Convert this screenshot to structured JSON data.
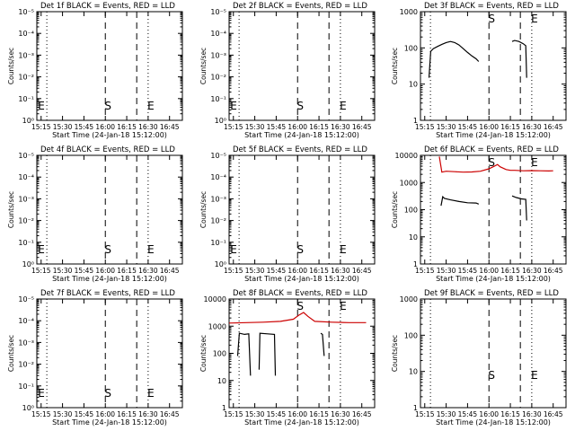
{
  "x_axis": {
    "tick_labels": [
      "15:15",
      "15:30",
      "15:45",
      "16:00",
      "16:15",
      "16:30",
      "16:45"
    ],
    "xlabel": "Start Time (24-Jan-18 15:12:00)",
    "range": [
      "15:12",
      "16:54"
    ]
  },
  "markers": [
    {
      "time": "16:00",
      "label": "S",
      "style": "dashed"
    },
    {
      "time": "16:30",
      "label": "E",
      "style": "dotted"
    }
  ],
  "dashed_lines": [
    "16:00",
    "16:22"
  ],
  "dotted_lines": [
    "15:19",
    "16:30"
  ],
  "style": {
    "events_color": "#000000",
    "lld_color": "#cc0000",
    "grid": false
  },
  "chart_data": [
    {
      "type": "line",
      "title": "Det 1f BLACK = Events, RED = LLD",
      "ylabel": "Counts/sec",
      "yscale": "log",
      "ytick_labels": [
        "10⁰",
        "10⁻¹",
        "10⁻²",
        "10⁻³",
        "10⁻⁴",
        "10⁻⁵"
      ],
      "ylim": [
        1,
        1e-05
      ],
      "markers_on": "left",
      "series": []
    },
    {
      "type": "line",
      "title": "Det 2f BLACK = Events, RED = LLD",
      "ylabel": "Counts/sec",
      "yscale": "log",
      "ytick_labels": [
        "10⁰",
        "10⁻¹",
        "10⁻²",
        "10⁻³",
        "10⁻⁴",
        "10⁻⁵"
      ],
      "ylim": [
        1,
        1e-05
      ],
      "markers_on": "left",
      "series": []
    },
    {
      "type": "line",
      "title": "Det 3f BLACK = Events, RED = LLD",
      "ylabel": "Counts/sec",
      "yscale": "log",
      "ytick_labels": [
        "1",
        "10",
        "100",
        "1000"
      ],
      "ylim": [
        1,
        1000
      ],
      "markers_on": "top",
      "series": [
        {
          "color": "#000000",
          "segments": [
            [
              [
                15.3,
                15
              ],
              [
                15.32,
                80
              ],
              [
                15.35,
                95
              ],
              [
                15.4,
                110
              ],
              [
                15.45,
                125
              ],
              [
                15.5,
                140
              ],
              [
                15.55,
                150
              ],
              [
                15.6,
                140
              ],
              [
                15.65,
                120
              ],
              [
                15.7,
                95
              ],
              [
                15.75,
                75
              ],
              [
                15.8,
                60
              ],
              [
                15.85,
                50
              ],
              [
                15.88,
                42
              ]
            ],
            [
              [
                16.27,
                150
              ],
              [
                16.3,
                160
              ],
              [
                16.35,
                150
              ],
              [
                16.4,
                130
              ],
              [
                16.43,
                115
              ],
              [
                16.44,
                15
              ]
            ]
          ]
        }
      ]
    },
    {
      "type": "line",
      "title": "Det 4f BLACK = Events, RED = LLD",
      "ylabel": "Counts/sec",
      "yscale": "log",
      "ytick_labels": [
        "10⁰",
        "10⁻¹",
        "10⁻²",
        "10⁻³",
        "10⁻⁴",
        "10⁻⁵"
      ],
      "ylim": [
        1,
        1e-05
      ],
      "markers_on": "left",
      "series": []
    },
    {
      "type": "line",
      "title": "Det 5f BLACK = Events, RED = LLD",
      "ylabel": "Counts/sec",
      "yscale": "log",
      "ytick_labels": [
        "10⁰",
        "10⁻¹",
        "10⁻²",
        "10⁻³",
        "10⁻⁴",
        "10⁻⁵"
      ],
      "ylim": [
        1,
        1e-05
      ],
      "markers_on": "left",
      "series": []
    },
    {
      "type": "line",
      "title": "Det 6f BLACK = Events, RED = LLD",
      "ylabel": "Counts/sec",
      "yscale": "log",
      "ytick_labels": [
        "1",
        "10",
        "100",
        "1000",
        "10000"
      ],
      "ylim": [
        1,
        10000
      ],
      "markers_on": "top",
      "series": [
        {
          "color": "#cc0000",
          "segments": [
            [
              [
                15.42,
                9000
              ],
              [
                15.45,
                2400
              ],
              [
                15.5,
                2600
              ],
              [
                15.6,
                2500
              ],
              [
                15.7,
                2400
              ],
              [
                15.8,
                2450
              ],
              [
                15.9,
                2600
              ],
              [
                16.0,
                3200
              ],
              [
                16.05,
                3800
              ],
              [
                16.1,
                4600
              ],
              [
                16.13,
                3800
              ],
              [
                16.2,
                3000
              ],
              [
                16.25,
                2800
              ],
              [
                16.3,
                2800
              ],
              [
                16.4,
                2700
              ],
              [
                16.5,
                2750
              ],
              [
                16.6,
                2700
              ],
              [
                16.7,
                2650
              ],
              [
                16.75,
                2700
              ]
            ]
          ]
        },
        {
          "color": "#000000",
          "segments": [
            [
              [
                15.44,
                140
              ],
              [
                15.46,
                300
              ],
              [
                15.48,
                260
              ],
              [
                15.55,
                230
              ],
              [
                15.65,
                200
              ],
              [
                15.75,
                180
              ],
              [
                15.85,
                175
              ],
              [
                15.88,
                160
              ]
            ],
            [
              [
                16.27,
                320
              ],
              [
                16.32,
                280
              ],
              [
                16.38,
                250
              ],
              [
                16.43,
                240
              ],
              [
                16.44,
                40
              ]
            ]
          ]
        }
      ]
    },
    {
      "type": "line",
      "title": "Det 7f BLACK = Events, RED = LLD",
      "ylabel": "Counts/sec",
      "yscale": "log",
      "ytick_labels": [
        "10⁰",
        "10⁻¹",
        "10⁻²",
        "10⁻³",
        "10⁻⁴",
        "10⁻⁵"
      ],
      "ylim": [
        1,
        1e-05
      ],
      "markers_on": "left",
      "series": []
    },
    {
      "type": "line",
      "title": "Det 8f BLACK = Events, RED = LLD",
      "ylabel": "Counts/sec",
      "yscale": "log",
      "ytick_labels": [
        "1",
        "10",
        "100",
        "1000",
        "10000"
      ],
      "ylim": [
        1,
        10000
      ],
      "markers_on": "top",
      "series": [
        {
          "color": "#cc0000",
          "segments": [
            [
              [
                15.2,
                1300
              ],
              [
                15.4,
                1350
              ],
              [
                15.6,
                1400
              ],
              [
                15.8,
                1500
              ],
              [
                15.95,
                1800
              ],
              [
                16.02,
                2600
              ],
              [
                16.07,
                3200
              ],
              [
                16.12,
                2300
              ],
              [
                16.2,
                1500
              ],
              [
                16.4,
                1400
              ],
              [
                16.6,
                1350
              ],
              [
                16.8,
                1350
              ]
            ]
          ]
        },
        {
          "color": "#000000",
          "segments": [
            [
              [
                15.3,
                80
              ],
              [
                15.32,
                550
              ],
              [
                15.38,
                500
              ],
              [
                15.43,
                520
              ],
              [
                15.45,
                15
              ]
            ],
            [
              [
                15.55,
                25
              ],
              [
                15.56,
                550
              ],
              [
                15.65,
                520
              ],
              [
                15.73,
                500
              ],
              [
                15.74,
                15
              ]
            ],
            [
              [
                16.27,
                550
              ],
              [
                16.29,
                500
              ],
              [
                16.31,
                80
              ]
            ]
          ]
        }
      ]
    },
    {
      "type": "line",
      "title": "Det 9f BLACK = Events, RED = LLD",
      "ylabel": "Counts/sec",
      "yscale": "log",
      "ytick_labels": [
        "1",
        "10",
        "100",
        "1000"
      ],
      "ylim": [
        1,
        1000
      ],
      "markers_on": "lower",
      "series": []
    }
  ]
}
